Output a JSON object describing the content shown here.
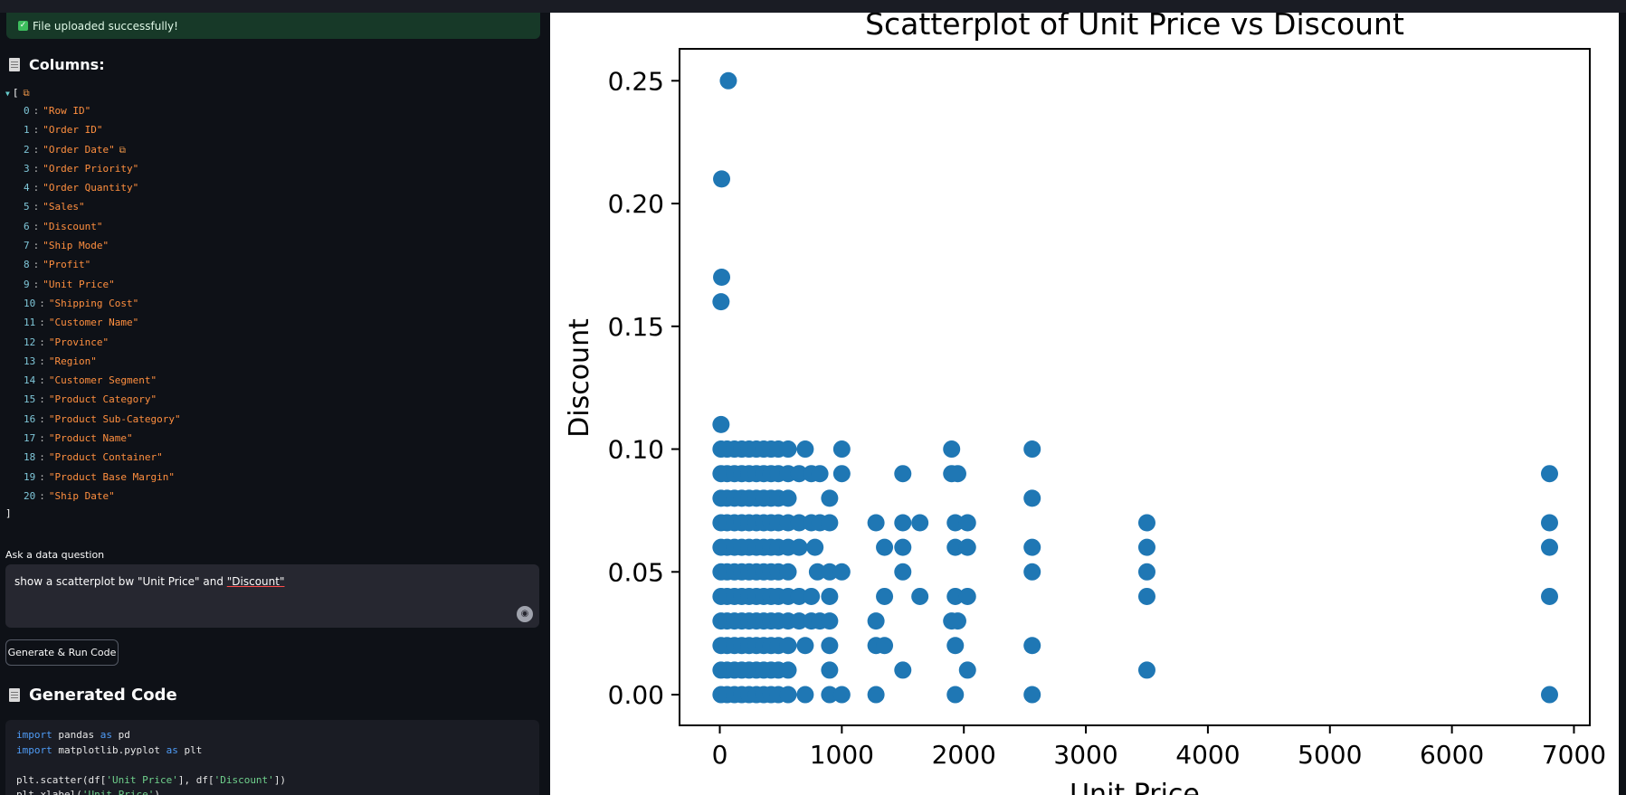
{
  "status": {
    "success_message": "File uploaded successfully!"
  },
  "columns_section": {
    "title": "Columns:",
    "open_bracket": "[",
    "close_bracket": "]",
    "items": [
      {
        "index": "0",
        "value": "\"Row ID\""
      },
      {
        "index": "1",
        "value": "\"Order ID\""
      },
      {
        "index": "2",
        "value": "\"Order Date\""
      },
      {
        "index": "3",
        "value": "\"Order Priority\""
      },
      {
        "index": "4",
        "value": "\"Order Quantity\""
      },
      {
        "index": "5",
        "value": "\"Sales\""
      },
      {
        "index": "6",
        "value": "\"Discount\""
      },
      {
        "index": "7",
        "value": "\"Ship Mode\""
      },
      {
        "index": "8",
        "value": "\"Profit\""
      },
      {
        "index": "9",
        "value": "\"Unit Price\""
      },
      {
        "index": "10",
        "value": "\"Shipping Cost\""
      },
      {
        "index": "11",
        "value": "\"Customer Name\""
      },
      {
        "index": "12",
        "value": "\"Province\""
      },
      {
        "index": "13",
        "value": "\"Region\""
      },
      {
        "index": "14",
        "value": "\"Customer Segment\""
      },
      {
        "index": "15",
        "value": "\"Product Category\""
      },
      {
        "index": "16",
        "value": "\"Product Sub-Category\""
      },
      {
        "index": "17",
        "value": "\"Product Name\""
      },
      {
        "index": "18",
        "value": "\"Product Container\""
      },
      {
        "index": "19",
        "value": "\"Product Base Margin\""
      },
      {
        "index": "20",
        "value": "\"Ship Date\""
      }
    ]
  },
  "question": {
    "label": "Ask a data question",
    "text_prefix": "show a scatterplot bw \"Unit Price\" and ",
    "text_underlined": "\"Discount\""
  },
  "run_button": {
    "label": "Generate & Run Code"
  },
  "generated_code": {
    "title": "Generated Code",
    "lines": [
      {
        "kw1": "import",
        "a": " pandas ",
        "kw2": "as",
        "b": " pd"
      },
      {
        "kw1": "import",
        "a": " matplotlib.pyplot ",
        "kw2": "as",
        "b": " plt"
      },
      {
        "plain": ""
      },
      {
        "plain_pre": "plt.scatter(df[",
        "str1": "'Unit Price'",
        "mid": "], df[",
        "str2": "'Discount'",
        "post": "])"
      },
      {
        "plain_pre": "plt.xlabel(",
        "str1": "'Unit Price'",
        "post": ")"
      }
    ]
  },
  "chart_data": {
    "type": "scatter",
    "title": "Scatterplot of Unit Price vs Discount",
    "xlabel": "Unit Price",
    "ylabel": "Discount",
    "xlim": [
      -330,
      7130
    ],
    "ylim": [
      -0.0125,
      0.263
    ],
    "xticks": [
      0,
      1000,
      2000,
      3000,
      4000,
      5000,
      6000,
      7000
    ],
    "yticks": [
      0.0,
      0.05,
      0.1,
      0.15,
      0.2,
      0.25
    ],
    "ytick_labels": [
      "0.00",
      "0.05",
      "0.10",
      "0.15",
      "0.20",
      "0.25"
    ],
    "color": "#1f77b4",
    "grid": false,
    "points": [
      [
        70,
        0.25
      ],
      [
        15,
        0.21
      ],
      [
        15,
        0.17
      ],
      [
        10,
        0.16
      ],
      [
        10,
        0.11
      ],
      [
        10,
        0.1
      ],
      [
        60,
        0.1
      ],
      [
        120,
        0.1
      ],
      [
        180,
        0.1
      ],
      [
        240,
        0.1
      ],
      [
        300,
        0.1
      ],
      [
        360,
        0.1
      ],
      [
        420,
        0.1
      ],
      [
        480,
        0.1
      ],
      [
        560,
        0.1
      ],
      [
        700,
        0.1
      ],
      [
        1000,
        0.1
      ],
      [
        1900,
        0.1
      ],
      [
        2560,
        0.1
      ],
      [
        10,
        0.09
      ],
      [
        60,
        0.09
      ],
      [
        120,
        0.09
      ],
      [
        180,
        0.09
      ],
      [
        240,
        0.09
      ],
      [
        300,
        0.09
      ],
      [
        360,
        0.09
      ],
      [
        420,
        0.09
      ],
      [
        480,
        0.09
      ],
      [
        560,
        0.09
      ],
      [
        650,
        0.09
      ],
      [
        750,
        0.09
      ],
      [
        820,
        0.09
      ],
      [
        1000,
        0.09
      ],
      [
        1500,
        0.09
      ],
      [
        1900,
        0.09
      ],
      [
        1950,
        0.09
      ],
      [
        6800,
        0.09
      ],
      [
        10,
        0.08
      ],
      [
        60,
        0.08
      ],
      [
        120,
        0.08
      ],
      [
        180,
        0.08
      ],
      [
        240,
        0.08
      ],
      [
        300,
        0.08
      ],
      [
        360,
        0.08
      ],
      [
        420,
        0.08
      ],
      [
        480,
        0.08
      ],
      [
        560,
        0.08
      ],
      [
        900,
        0.08
      ],
      [
        2560,
        0.08
      ],
      [
        10,
        0.07
      ],
      [
        60,
        0.07
      ],
      [
        120,
        0.07
      ],
      [
        180,
        0.07
      ],
      [
        240,
        0.07
      ],
      [
        300,
        0.07
      ],
      [
        360,
        0.07
      ],
      [
        420,
        0.07
      ],
      [
        480,
        0.07
      ],
      [
        560,
        0.07
      ],
      [
        650,
        0.07
      ],
      [
        750,
        0.07
      ],
      [
        820,
        0.07
      ],
      [
        900,
        0.07
      ],
      [
        1280,
        0.07
      ],
      [
        1500,
        0.07
      ],
      [
        1640,
        0.07
      ],
      [
        1930,
        0.07
      ],
      [
        2030,
        0.07
      ],
      [
        3500,
        0.07
      ],
      [
        6800,
        0.07
      ],
      [
        10,
        0.06
      ],
      [
        60,
        0.06
      ],
      [
        120,
        0.06
      ],
      [
        180,
        0.06
      ],
      [
        240,
        0.06
      ],
      [
        300,
        0.06
      ],
      [
        360,
        0.06
      ],
      [
        420,
        0.06
      ],
      [
        480,
        0.06
      ],
      [
        560,
        0.06
      ],
      [
        650,
        0.06
      ],
      [
        780,
        0.06
      ],
      [
        1350,
        0.06
      ],
      [
        1500,
        0.06
      ],
      [
        1930,
        0.06
      ],
      [
        2030,
        0.06
      ],
      [
        2560,
        0.06
      ],
      [
        3500,
        0.06
      ],
      [
        6800,
        0.06
      ],
      [
        10,
        0.05
      ],
      [
        60,
        0.05
      ],
      [
        120,
        0.05
      ],
      [
        180,
        0.05
      ],
      [
        240,
        0.05
      ],
      [
        300,
        0.05
      ],
      [
        360,
        0.05
      ],
      [
        420,
        0.05
      ],
      [
        480,
        0.05
      ],
      [
        560,
        0.05
      ],
      [
        800,
        0.05
      ],
      [
        900,
        0.05
      ],
      [
        1000,
        0.05
      ],
      [
        1500,
        0.05
      ],
      [
        2560,
        0.05
      ],
      [
        3500,
        0.05
      ],
      [
        10,
        0.04
      ],
      [
        60,
        0.04
      ],
      [
        120,
        0.04
      ],
      [
        180,
        0.04
      ],
      [
        240,
        0.04
      ],
      [
        300,
        0.04
      ],
      [
        360,
        0.04
      ],
      [
        420,
        0.04
      ],
      [
        480,
        0.04
      ],
      [
        560,
        0.04
      ],
      [
        650,
        0.04
      ],
      [
        750,
        0.04
      ],
      [
        900,
        0.04
      ],
      [
        1350,
        0.04
      ],
      [
        1640,
        0.04
      ],
      [
        1930,
        0.04
      ],
      [
        2030,
        0.04
      ],
      [
        3500,
        0.04
      ],
      [
        6800,
        0.04
      ],
      [
        10,
        0.03
      ],
      [
        60,
        0.03
      ],
      [
        120,
        0.03
      ],
      [
        180,
        0.03
      ],
      [
        240,
        0.03
      ],
      [
        300,
        0.03
      ],
      [
        360,
        0.03
      ],
      [
        420,
        0.03
      ],
      [
        480,
        0.03
      ],
      [
        560,
        0.03
      ],
      [
        650,
        0.03
      ],
      [
        750,
        0.03
      ],
      [
        820,
        0.03
      ],
      [
        900,
        0.03
      ],
      [
        1280,
        0.03
      ],
      [
        1900,
        0.03
      ],
      [
        1950,
        0.03
      ],
      [
        10,
        0.02
      ],
      [
        60,
        0.02
      ],
      [
        120,
        0.02
      ],
      [
        180,
        0.02
      ],
      [
        240,
        0.02
      ],
      [
        300,
        0.02
      ],
      [
        360,
        0.02
      ],
      [
        420,
        0.02
      ],
      [
        480,
        0.02
      ],
      [
        560,
        0.02
      ],
      [
        700,
        0.02
      ],
      [
        900,
        0.02
      ],
      [
        1280,
        0.02
      ],
      [
        1350,
        0.02
      ],
      [
        1930,
        0.02
      ],
      [
        2560,
        0.02
      ],
      [
        10,
        0.01
      ],
      [
        60,
        0.01
      ],
      [
        120,
        0.01
      ],
      [
        180,
        0.01
      ],
      [
        240,
        0.01
      ],
      [
        300,
        0.01
      ],
      [
        360,
        0.01
      ],
      [
        420,
        0.01
      ],
      [
        480,
        0.01
      ],
      [
        560,
        0.01
      ],
      [
        900,
        0.01
      ],
      [
        1500,
        0.01
      ],
      [
        2030,
        0.01
      ],
      [
        3500,
        0.01
      ],
      [
        10,
        0.0
      ],
      [
        60,
        0.0
      ],
      [
        120,
        0.0
      ],
      [
        180,
        0.0
      ],
      [
        240,
        0.0
      ],
      [
        300,
        0.0
      ],
      [
        360,
        0.0
      ],
      [
        420,
        0.0
      ],
      [
        480,
        0.0
      ],
      [
        560,
        0.0
      ],
      [
        700,
        0.0
      ],
      [
        900,
        0.0
      ],
      [
        1000,
        0.0
      ],
      [
        1280,
        0.0
      ],
      [
        1930,
        0.0
      ],
      [
        2560,
        0.0
      ],
      [
        6800,
        0.0
      ]
    ]
  }
}
